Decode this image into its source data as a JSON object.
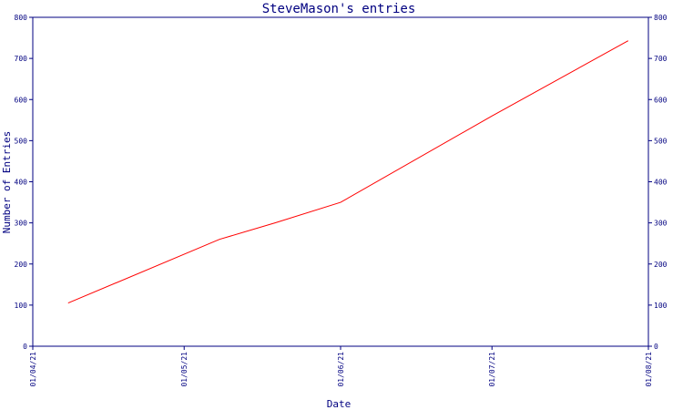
{
  "chart_data": {
    "type": "line",
    "title": "SteveMason's entries",
    "xlabel": "Date",
    "ylabel": "Number of Entries",
    "x_ticks": [
      "01/04/21",
      "01/05/21",
      "01/06/21",
      "01/07/21",
      "01/08/21"
    ],
    "x_tick_dates": [
      "2021-04-01",
      "2021-05-01",
      "2021-06-01",
      "2021-07-01",
      "2021-08-01"
    ],
    "xlim": [
      "2021-04-01",
      "2021-08-01"
    ],
    "y_ticks": [
      0,
      100,
      200,
      300,
      400,
      500,
      600,
      700,
      800
    ],
    "ylim": [
      0,
      800
    ],
    "right_axis_ticks": true,
    "grid": false,
    "series": [
      {
        "color": "#ff0000",
        "points": [
          {
            "x": "2021-04-08",
            "y": 105
          },
          {
            "x": "2021-05-08",
            "y": 260
          },
          {
            "x": "2021-05-19",
            "y": 300
          },
          {
            "x": "2021-06-01",
            "y": 350
          },
          {
            "x": "2021-07-01",
            "y": 560
          },
          {
            "x": "2021-07-28",
            "y": 743
          }
        ]
      }
    ]
  }
}
